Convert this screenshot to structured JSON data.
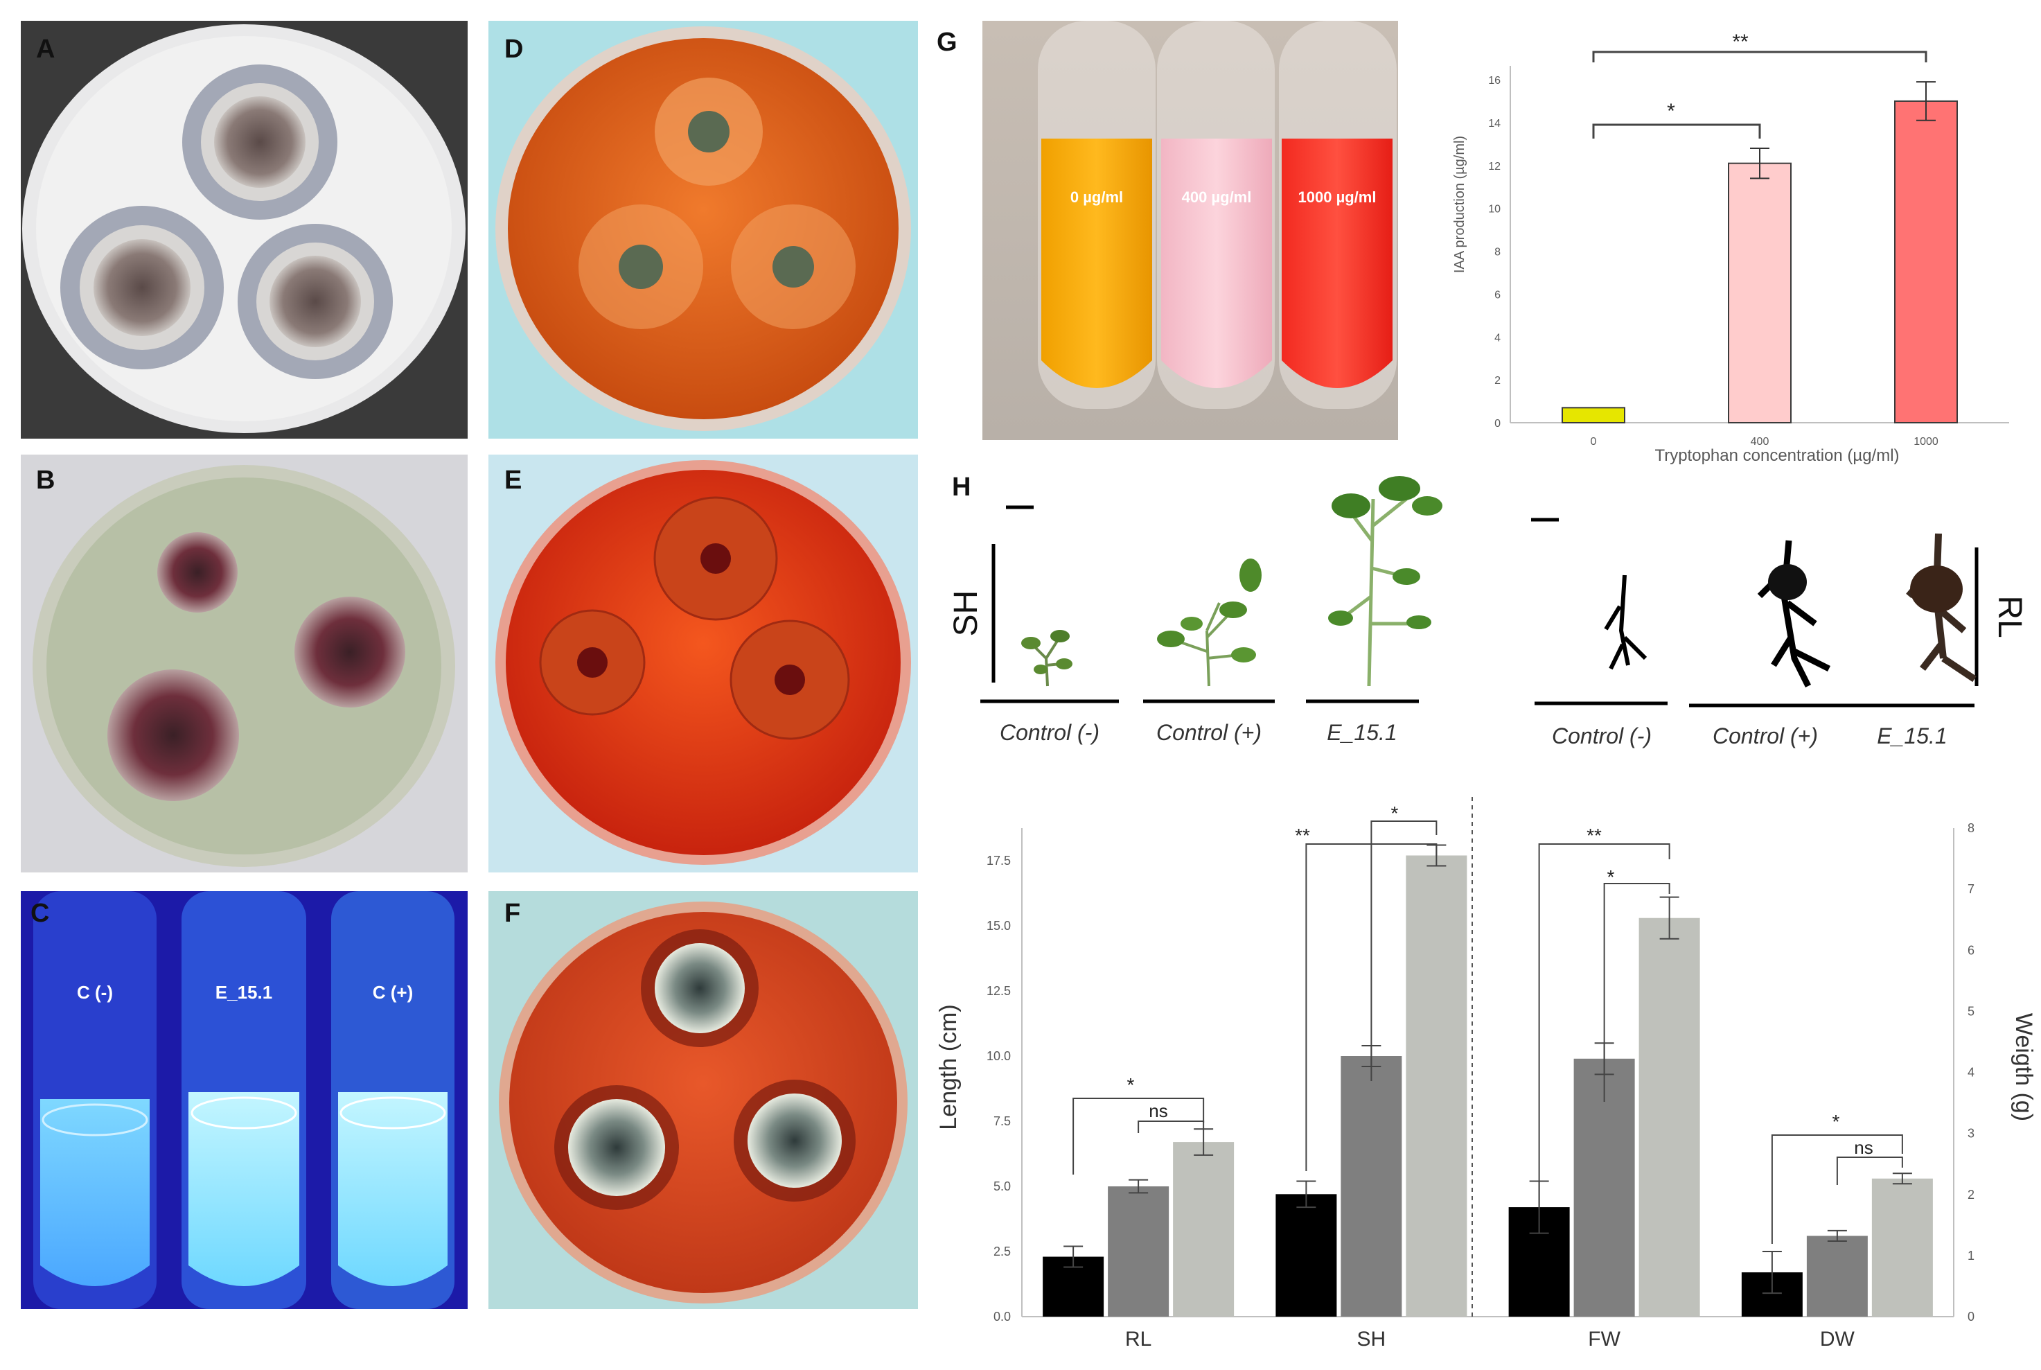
{
  "panel_labels": {
    "a": "A",
    "b": "B",
    "c": "C",
    "d": "D",
    "e": "E",
    "f": "F",
    "g": "G",
    "h": "H"
  },
  "colors": {
    "plate_a_bg": "#3a3a3a",
    "plate_b_bg": "#d6d6da",
    "plate_c_bg": "#1e1fb5",
    "plate_d_bg": "#aee0e6",
    "plate_e_bg": "#c9e6ef",
    "plate_f_bg": "#b5dcdc",
    "orange": "#e8661c",
    "red": "#e0341e",
    "bar_black": "#000000",
    "bar_dark_gray": "#7f7f7f",
    "bar_light_gray": "#bfc1bb"
  },
  "panel_c": {
    "tube_labels": [
      "C (-)",
      "E_15.1",
      "C (+)"
    ]
  },
  "panel_g": {
    "tube_labels": [
      "0 µg/ml",
      "400 µg/ml",
      "1000 µg/ml"
    ],
    "sig_marks": [
      "*",
      "**"
    ]
  },
  "panel_h": {
    "scale_labels": {
      "shoot": "SH",
      "root": "RL"
    },
    "plant_labels": [
      "Control (-)",
      "Control (+)",
      "E_15.1"
    ],
    "sig_marks": [
      "*",
      "ns",
      "**",
      "*",
      "**",
      "*",
      "*",
      "ns"
    ]
  },
  "chart_data": [
    {
      "type": "bar",
      "xlabel": "Tryptophan concentration (µg/ml)",
      "ylabel": "IAA production (µg/ml)",
      "categories": [
        "0",
        "400",
        "1000"
      ],
      "values": [
        0.7,
        12.1,
        15.0
      ],
      "errors": [
        0,
        0.7,
        0.9
      ],
      "bar_colors": [
        "#e6e600",
        "#ffcccc",
        "#ff7373"
      ],
      "ylim": [
        0,
        16
      ],
      "yticks": [
        "0",
        "2",
        "4",
        "6",
        "8",
        "10",
        "12",
        "14",
        "16"
      ],
      "grid": false
    },
    {
      "type": "bar",
      "xlabel": "",
      "ylabel": "Length (cm)",
      "ylabel_right": "Weigth (g)",
      "categories": [
        "RL",
        "SH",
        "FW",
        "DW"
      ],
      "series": [
        {
          "values": [
            2.3,
            4.7,
            4.2,
            1.7
          ],
          "errors": [
            0.4,
            0.5,
            1.0,
            0.8
          ]
        },
        {
          "values": [
            5.0,
            10.0,
            9.9,
            3.1
          ],
          "errors": [
            0.25,
            0.4,
            0.6,
            0.2
          ]
        },
        {
          "values": [
            6.7,
            17.7,
            15.3,
            5.3
          ],
          "errors": [
            0.5,
            0.4,
            0.8,
            0.2
          ]
        }
      ],
      "ylim": [
        0,
        18.75
      ],
      "yticks": [
        "0.0",
        "2.5",
        "5.0",
        "7.5",
        "10.0",
        "12.5",
        "15.0",
        "17.5"
      ],
      "yticks_right": [
        "0",
        "1",
        "2",
        "3",
        "4",
        "5",
        "6",
        "7",
        "8"
      ],
      "grid": false
    }
  ]
}
